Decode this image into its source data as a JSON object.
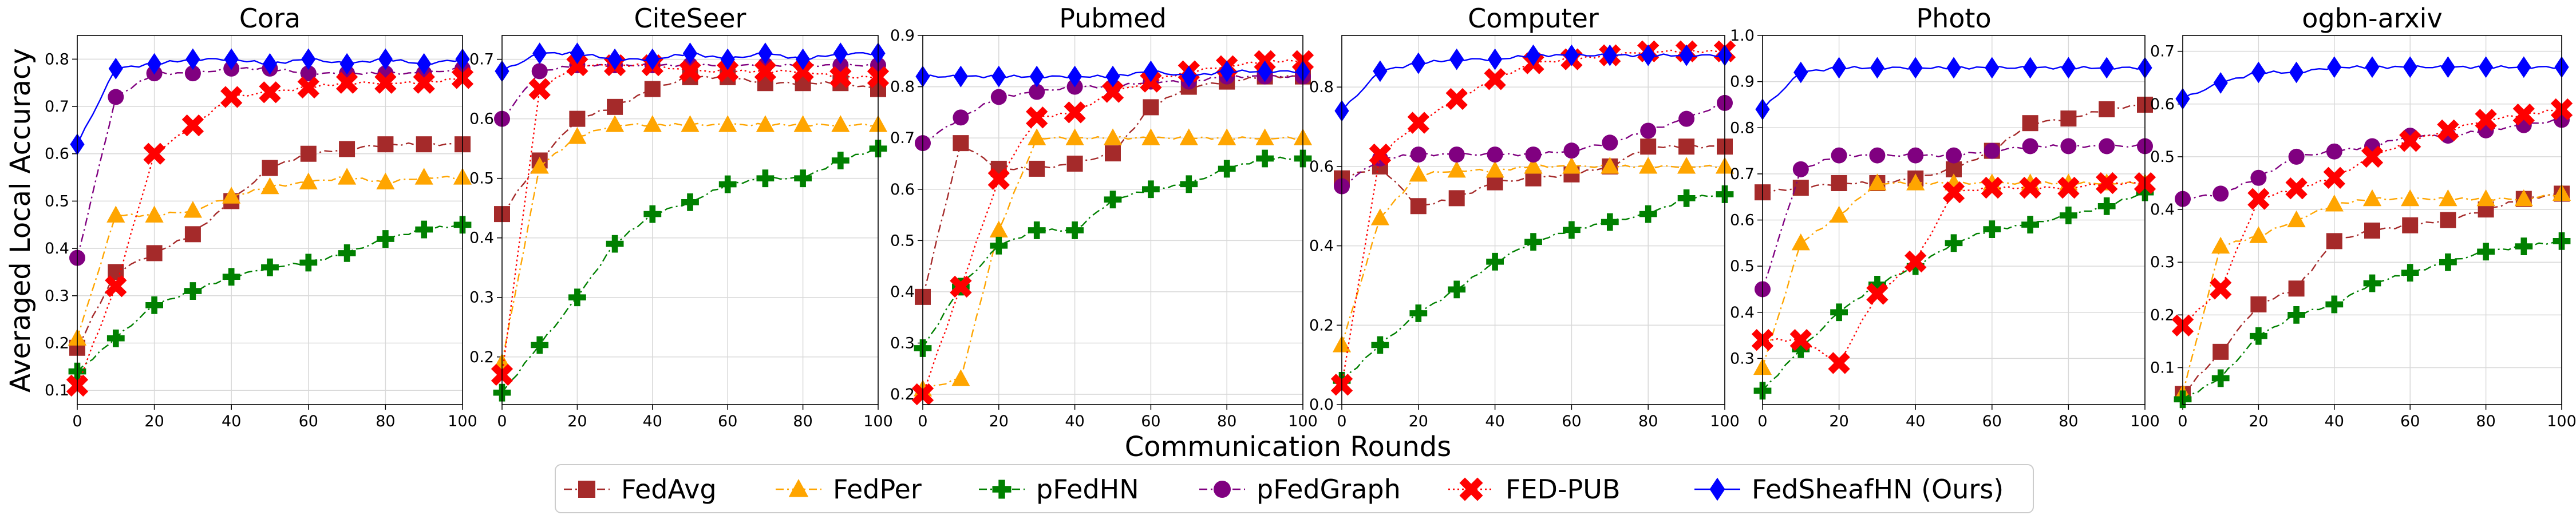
{
  "figure": {
    "ylabel": "Averaged Local Accuracy",
    "xlabel": "Communication Rounds"
  },
  "series_styles": [
    {
      "name": "FedAvg",
      "color": "#a52a2a",
      "marker": "square",
      "dash": "dashdot"
    },
    {
      "name": "FedPer",
      "color": "#ffa500",
      "marker": "triangle",
      "dash": "dashdot"
    },
    {
      "name": "pFedHN",
      "color": "#008000",
      "marker": "plus",
      "dash": "dashdot"
    },
    {
      "name": "pFedGraph",
      "color": "#800080",
      "marker": "circle",
      "dash": "dashdot"
    },
    {
      "name": "FED-PUB",
      "color": "#ff0000",
      "marker": "x",
      "dash": "dotted"
    },
    {
      "name": "FedSheafHN (Ours)",
      "color": "#0000ff",
      "marker": "diamond",
      "dash": "solid"
    }
  ],
  "chart_data": [
    {
      "type": "line",
      "title": "Cora",
      "xlim": [
        0,
        100
      ],
      "ylim": [
        0.07,
        0.85
      ],
      "xticks": [
        0,
        20,
        40,
        60,
        80,
        100
      ],
      "yticks": [
        0.1,
        0.2,
        0.3,
        0.4,
        0.5,
        0.6,
        0.7,
        0.8
      ],
      "x": [
        0,
        10,
        20,
        30,
        40,
        50,
        60,
        70,
        80,
        90,
        100
      ],
      "series": [
        {
          "name": "FedAvg",
          "values": [
            0.19,
            0.35,
            0.39,
            0.43,
            0.5,
            0.57,
            0.6,
            0.61,
            0.62,
            0.62,
            0.62
          ]
        },
        {
          "name": "FedPer",
          "values": [
            0.21,
            0.47,
            0.47,
            0.48,
            0.51,
            0.53,
            0.54,
            0.55,
            0.54,
            0.55,
            0.55
          ]
        },
        {
          "name": "pFedHN",
          "values": [
            0.14,
            0.21,
            0.28,
            0.31,
            0.34,
            0.36,
            0.37,
            0.39,
            0.42,
            0.44,
            0.45
          ]
        },
        {
          "name": "pFedGraph",
          "values": [
            0.38,
            0.72,
            0.77,
            0.77,
            0.78,
            0.78,
            0.77,
            0.77,
            0.77,
            0.77,
            0.78
          ]
        },
        {
          "name": "FED-PUB",
          "values": [
            0.11,
            0.32,
            0.6,
            0.66,
            0.72,
            0.73,
            0.74,
            0.75,
            0.75,
            0.75,
            0.76
          ]
        },
        {
          "name": "FedSheafHN (Ours)",
          "values": [
            0.62,
            0.78,
            0.79,
            0.8,
            0.8,
            0.79,
            0.8,
            0.79,
            0.8,
            0.79,
            0.8
          ]
        }
      ]
    },
    {
      "type": "line",
      "title": "CiteSeer",
      "xlim": [
        0,
        100
      ],
      "ylim": [
        0.12,
        0.74
      ],
      "xticks": [
        0,
        20,
        40,
        60,
        80,
        100
      ],
      "yticks": [
        0.2,
        0.3,
        0.4,
        0.5,
        0.6,
        0.7
      ],
      "x": [
        0,
        10,
        20,
        30,
        40,
        50,
        60,
        70,
        80,
        90,
        100
      ],
      "series": [
        {
          "name": "FedAvg",
          "values": [
            0.44,
            0.53,
            0.6,
            0.62,
            0.65,
            0.67,
            0.67,
            0.66,
            0.66,
            0.66,
            0.65
          ]
        },
        {
          "name": "FedPer",
          "values": [
            0.19,
            0.52,
            0.57,
            0.59,
            0.59,
            0.59,
            0.59,
            0.59,
            0.59,
            0.59,
            0.59
          ]
        },
        {
          "name": "pFedHN",
          "values": [
            0.14,
            0.22,
            0.3,
            0.39,
            0.44,
            0.46,
            0.49,
            0.5,
            0.5,
            0.53,
            0.55
          ]
        },
        {
          "name": "pFedGraph",
          "values": [
            0.6,
            0.68,
            0.69,
            0.69,
            0.69,
            0.69,
            0.69,
            0.69,
            0.69,
            0.69,
            0.69
          ]
        },
        {
          "name": "FED-PUB",
          "values": [
            0.17,
            0.65,
            0.69,
            0.69,
            0.69,
            0.68,
            0.68,
            0.68,
            0.68,
            0.67,
            0.67
          ]
        },
        {
          "name": "FedSheafHN (Ours)",
          "values": [
            0.68,
            0.71,
            0.71,
            0.7,
            0.7,
            0.71,
            0.7,
            0.71,
            0.7,
            0.71,
            0.71
          ]
        }
      ]
    },
    {
      "type": "line",
      "title": "Pubmed",
      "xlim": [
        0,
        100
      ],
      "ylim": [
        0.18,
        0.9
      ],
      "xticks": [
        0,
        20,
        40,
        60,
        80,
        100
      ],
      "yticks": [
        0.2,
        0.3,
        0.4,
        0.5,
        0.6,
        0.7,
        0.8,
        0.9
      ],
      "x": [
        0,
        10,
        20,
        30,
        40,
        50,
        60,
        70,
        80,
        90,
        100
      ],
      "series": [
        {
          "name": "FedAvg",
          "values": [
            0.39,
            0.69,
            0.64,
            0.64,
            0.65,
            0.67,
            0.76,
            0.8,
            0.81,
            0.82,
            0.82
          ]
        },
        {
          "name": "FedPer",
          "values": [
            0.21,
            0.23,
            0.52,
            0.7,
            0.7,
            0.7,
            0.7,
            0.7,
            0.7,
            0.7,
            0.7
          ]
        },
        {
          "name": "pFedHN",
          "values": [
            0.29,
            0.41,
            0.49,
            0.52,
            0.52,
            0.58,
            0.6,
            0.61,
            0.64,
            0.66,
            0.66
          ]
        },
        {
          "name": "pFedGraph",
          "values": [
            0.69,
            0.74,
            0.78,
            0.79,
            0.8,
            0.8,
            0.81,
            0.81,
            0.82,
            0.82,
            0.82
          ]
        },
        {
          "name": "FED-PUB",
          "values": [
            0.2,
            0.41,
            0.62,
            0.74,
            0.75,
            0.79,
            0.81,
            0.83,
            0.84,
            0.85,
            0.85
          ]
        },
        {
          "name": "FedSheafHN (Ours)",
          "values": [
            0.82,
            0.82,
            0.82,
            0.82,
            0.82,
            0.82,
            0.83,
            0.82,
            0.83,
            0.83,
            0.83
          ]
        }
      ]
    },
    {
      "type": "line",
      "title": "Computer",
      "xlim": [
        0,
        100
      ],
      "ylim": [
        0.0,
        0.93
      ],
      "xticks": [
        0,
        20,
        40,
        60,
        80,
        100
      ],
      "yticks": [
        0.0,
        0.2,
        0.4,
        0.6,
        0.8
      ],
      "x": [
        0,
        10,
        20,
        30,
        40,
        50,
        60,
        70,
        80,
        90,
        100
      ],
      "series": [
        {
          "name": "FedAvg",
          "values": [
            0.57,
            0.6,
            0.5,
            0.52,
            0.56,
            0.57,
            0.58,
            0.6,
            0.65,
            0.65,
            0.65
          ]
        },
        {
          "name": "FedPer",
          "values": [
            0.15,
            0.47,
            0.58,
            0.59,
            0.59,
            0.6,
            0.6,
            0.6,
            0.6,
            0.6,
            0.6
          ]
        },
        {
          "name": "pFedHN",
          "values": [
            0.06,
            0.15,
            0.23,
            0.29,
            0.36,
            0.41,
            0.44,
            0.46,
            0.48,
            0.52,
            0.53
          ]
        },
        {
          "name": "pFedGraph",
          "values": [
            0.55,
            0.62,
            0.63,
            0.63,
            0.63,
            0.63,
            0.64,
            0.66,
            0.69,
            0.72,
            0.76
          ]
        },
        {
          "name": "FED-PUB",
          "values": [
            0.05,
            0.63,
            0.71,
            0.77,
            0.82,
            0.86,
            0.87,
            0.88,
            0.89,
            0.89,
            0.89
          ]
        },
        {
          "name": "FedSheafHN (Ours)",
          "values": [
            0.74,
            0.84,
            0.86,
            0.87,
            0.87,
            0.88,
            0.88,
            0.88,
            0.88,
            0.88,
            0.88
          ]
        }
      ]
    },
    {
      "type": "line",
      "title": "Photo",
      "xlim": [
        0,
        100
      ],
      "ylim": [
        0.2,
        1.0
      ],
      "xticks": [
        0,
        20,
        40,
        60,
        80,
        100
      ],
      "yticks": [
        0.3,
        0.4,
        0.5,
        0.6,
        0.7,
        0.8,
        0.9,
        1.0
      ],
      "x": [
        0,
        10,
        20,
        30,
        40,
        50,
        60,
        70,
        80,
        90,
        100
      ],
      "series": [
        {
          "name": "FedAvg",
          "values": [
            0.66,
            0.67,
            0.68,
            0.68,
            0.69,
            0.71,
            0.75,
            0.81,
            0.82,
            0.84,
            0.85
          ]
        },
        {
          "name": "FedPer",
          "values": [
            0.28,
            0.55,
            0.61,
            0.68,
            0.68,
            0.68,
            0.68,
            0.68,
            0.68,
            0.68,
            0.68
          ]
        },
        {
          "name": "pFedHN",
          "values": [
            0.23,
            0.32,
            0.4,
            0.46,
            0.5,
            0.55,
            0.58,
            0.59,
            0.61,
            0.63,
            0.66
          ]
        },
        {
          "name": "pFedGraph",
          "values": [
            0.45,
            0.71,
            0.74,
            0.74,
            0.74,
            0.74,
            0.75,
            0.76,
            0.76,
            0.76,
            0.76
          ]
        },
        {
          "name": "FED-PUB",
          "values": [
            0.34,
            0.34,
            0.29,
            0.44,
            0.51,
            0.66,
            0.67,
            0.67,
            0.67,
            0.68,
            0.68
          ]
        },
        {
          "name": "FedSheafHN (Ours)",
          "values": [
            0.84,
            0.92,
            0.93,
            0.93,
            0.93,
            0.93,
            0.93,
            0.93,
            0.93,
            0.93,
            0.93
          ]
        }
      ]
    },
    {
      "type": "line",
      "title": "ogbn-arxiv",
      "xlim": [
        0,
        100
      ],
      "ylim": [
        0.03,
        0.73
      ],
      "xticks": [
        0,
        20,
        40,
        60,
        80,
        100
      ],
      "yticks": [
        0.1,
        0.2,
        0.3,
        0.4,
        0.5,
        0.6,
        0.7
      ],
      "x": [
        0,
        10,
        20,
        30,
        40,
        50,
        60,
        70,
        80,
        90,
        100
      ],
      "series": [
        {
          "name": "FedAvg",
          "values": [
            0.05,
            0.13,
            0.22,
            0.25,
            0.34,
            0.36,
            0.37,
            0.38,
            0.4,
            0.42,
            0.43
          ]
        },
        {
          "name": "FedPer",
          "values": [
            0.05,
            0.33,
            0.35,
            0.38,
            0.41,
            0.42,
            0.42,
            0.42,
            0.42,
            0.42,
            0.43
          ]
        },
        {
          "name": "pFedHN",
          "values": [
            0.04,
            0.08,
            0.16,
            0.2,
            0.22,
            0.26,
            0.28,
            0.3,
            0.32,
            0.33,
            0.34
          ]
        },
        {
          "name": "pFedGraph",
          "values": [
            0.42,
            0.43,
            0.46,
            0.5,
            0.51,
            0.52,
            0.54,
            0.54,
            0.55,
            0.56,
            0.57
          ]
        },
        {
          "name": "FED-PUB",
          "values": [
            0.18,
            0.25,
            0.42,
            0.44,
            0.46,
            0.5,
            0.53,
            0.55,
            0.57,
            0.58,
            0.59
          ]
        },
        {
          "name": "FedSheafHN (Ours)",
          "values": [
            0.61,
            0.64,
            0.66,
            0.66,
            0.67,
            0.67,
            0.67,
            0.67,
            0.67,
            0.67,
            0.67
          ]
        }
      ]
    }
  ]
}
